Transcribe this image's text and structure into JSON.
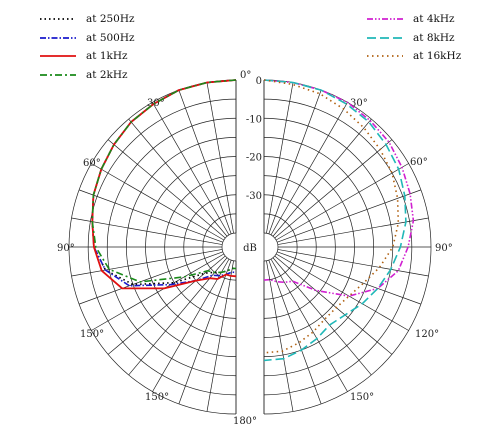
{
  "chart_data": {
    "type": "line",
    "subtype": "polar",
    "unit_label": "dB",
    "radial_ticks": [
      "0",
      "-10",
      "-20",
      "-30"
    ],
    "radial_range_db": [
      -40,
      0
    ],
    "angle_labels": [
      "0°",
      "30°",
      "60°",
      "90°",
      "120°",
      "150°",
      "180°"
    ],
    "grid": true,
    "legend_left": [
      "at 250Hz",
      "at 500Hz",
      "at 1kHz",
      "at 2kHz"
    ],
    "legend_right": [
      "at 4kHz",
      "at 8kHz",
      "at 16kHz"
    ],
    "series": [
      {
        "name": "at 250Hz",
        "side": "left",
        "color": "#000000",
        "dash": "1.5,3",
        "angles": [
          0,
          10,
          20,
          30,
          40,
          50,
          60,
          70,
          80,
          90,
          100,
          110,
          120,
          130,
          140,
          150,
          160,
          170,
          180
        ],
        "values": [
          0,
          0,
          0,
          -0.5,
          -1,
          -2,
          -3,
          -4,
          -5.5,
          -6.5,
          -9,
          -15,
          -25,
          -33,
          -35,
          -36,
          -37,
          -38,
          -38
        ]
      },
      {
        "name": "at 500Hz",
        "side": "left",
        "color": "#1a1acc",
        "dash": "6,2,1.5,2",
        "angles": [
          0,
          10,
          20,
          30,
          40,
          50,
          60,
          70,
          80,
          90,
          100,
          110,
          120,
          130,
          140,
          150,
          160,
          170,
          180
        ],
        "values": [
          0,
          0,
          0,
          -0.5,
          -1,
          -2,
          -3,
          -4,
          -5.5,
          -6.5,
          -9,
          -14,
          -24,
          -30,
          -34,
          -35,
          -36,
          -37,
          -37
        ]
      },
      {
        "name": "at 1kHz",
        "side": "left",
        "color": "#e01010",
        "dash": "",
        "angles": [
          0,
          10,
          20,
          30,
          40,
          50,
          60,
          70,
          80,
          90,
          100,
          110,
          120,
          130,
          140,
          150,
          160,
          170,
          180
        ],
        "values": [
          0,
          0,
          0,
          -0.5,
          -1,
          -2,
          -3,
          -4,
          -5.5,
          -6.5,
          -8,
          -12,
          -22,
          -30,
          -33,
          -34,
          -36,
          -36,
          -36
        ]
      },
      {
        "name": "at 2kHz",
        "side": "left",
        "color": "#1a8a1a",
        "dash": "7,3,2,3",
        "angles": [
          0,
          10,
          20,
          30,
          40,
          50,
          60,
          70,
          80,
          90,
          100,
          110,
          120,
          130,
          140,
          150,
          160,
          170,
          180
        ],
        "values": [
          0,
          0,
          0,
          -0.5,
          -1,
          -2,
          -3,
          -4,
          -5.5,
          -7,
          -10,
          -17,
          -28,
          -34,
          -35,
          -36,
          -37,
          -38,
          -38
        ]
      },
      {
        "name": "at 4kHz",
        "side": "right",
        "color": "#d020d0",
        "dash": "6,2,1.5,2,1.5,2",
        "angles": [
          0,
          10,
          20,
          30,
          40,
          50,
          60,
          70,
          80,
          90,
          100,
          110,
          120,
          130,
          140,
          150,
          160,
          170,
          180
        ],
        "values": [
          0,
          0,
          0,
          0,
          -0.5,
          -1,
          -2,
          -3,
          -4,
          -6,
          -8,
          -12,
          -18,
          -26,
          -32,
          -33,
          -34,
          -35,
          -35
        ]
      },
      {
        "name": "at 8kHz",
        "side": "right",
        "color": "#20b8b8",
        "dash": "9,4",
        "angles": [
          0,
          10,
          20,
          30,
          40,
          50,
          60,
          70,
          80,
          90,
          100,
          110,
          120,
          130,
          140,
          150,
          160,
          170,
          180
        ],
        "values": [
          0,
          0,
          0,
          -0.5,
          -1,
          -2,
          -3,
          -4.5,
          -6,
          -8,
          -10,
          -12,
          -14,
          -16,
          -17,
          -16,
          -15,
          -14,
          -14
        ]
      },
      {
        "name": "at 16kHz",
        "side": "right",
        "color": "#b06010",
        "dash": "1.5,3.5",
        "angles": [
          0,
          10,
          20,
          30,
          40,
          50,
          60,
          70,
          80,
          90,
          100,
          110,
          120,
          130,
          140,
          150,
          160,
          170,
          180
        ],
        "values": [
          0,
          -0.5,
          -1,
          -2,
          -3,
          -4,
          -5,
          -6.5,
          -8,
          -10,
          -13,
          -16,
          -18,
          -19,
          -19,
          -18,
          -17,
          -16,
          -16
        ]
      }
    ]
  }
}
